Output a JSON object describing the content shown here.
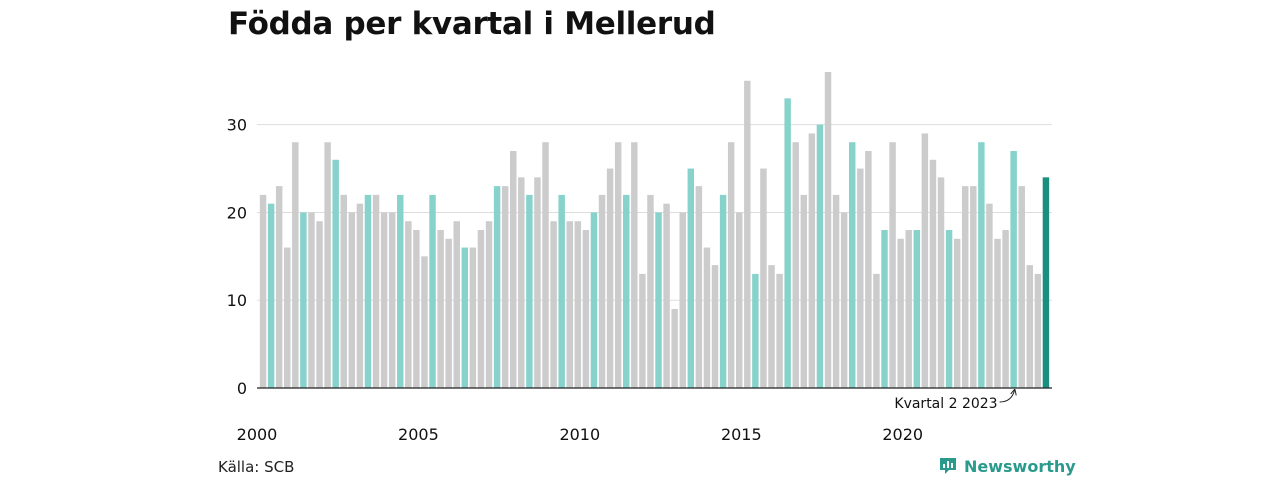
{
  "title": "Födda per kvartal i Mellerud",
  "source": "Källa: SCB",
  "brand": "Newsworthy",
  "colors": {
    "bar": "#cccccc",
    "bar_q2": "#87d3cc",
    "bar_latest": "#1a8f80",
    "grid": "#dddddd",
    "axis": "#222222",
    "brand": "#2a9a8c"
  },
  "chart_data": {
    "type": "bar",
    "title": "Födda per kvartal i Mellerud",
    "start_year": 2000,
    "quarters_per_year": 4,
    "values": [
      22,
      21,
      23,
      16,
      28,
      20,
      20,
      19,
      28,
      26,
      22,
      20,
      21,
      22,
      22,
      20,
      20,
      22,
      19,
      18,
      15,
      22,
      18,
      17,
      19,
      16,
      16,
      18,
      19,
      23,
      23,
      27,
      24,
      22,
      24,
      28,
      19,
      22,
      19,
      19,
      18,
      20,
      22,
      25,
      28,
      22,
      28,
      13,
      22,
      20,
      21,
      9,
      20,
      25,
      23,
      16,
      14,
      22,
      28,
      20,
      35,
      13,
      25,
      14,
      13,
      33,
      28,
      22,
      29,
      30,
      36,
      22,
      20,
      28,
      25,
      27,
      13,
      18,
      28,
      17,
      18,
      18,
      29,
      26,
      24,
      18,
      17,
      23,
      23,
      28,
      21,
      17,
      18,
      27,
      23,
      14,
      13,
      24
    ],
    "highlight": "Kvartal 2",
    "ylim": [
      0,
      36
    ],
    "yticks": [
      0,
      10,
      20,
      30
    ],
    "xtick_labels": [
      "2000",
      "2005",
      "2010",
      "2015",
      "2020"
    ],
    "annotation": "Kvartal 2 2023",
    "grid": "horizontal"
  }
}
